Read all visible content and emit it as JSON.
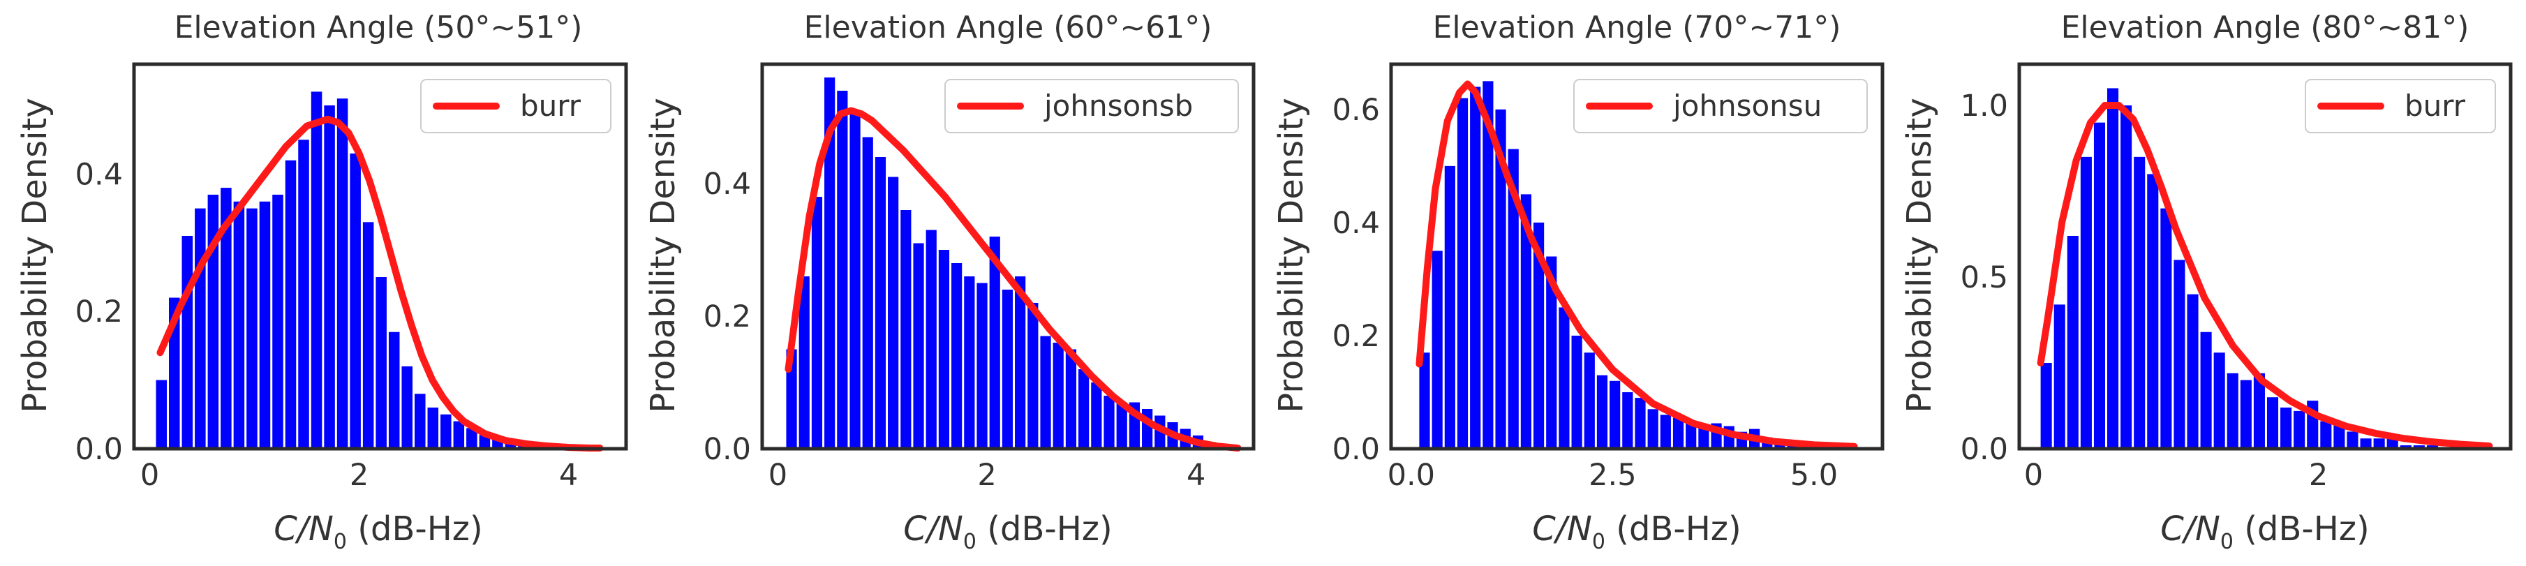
{
  "figure": {
    "ylabel": "Probability Density",
    "xlabel_symbol": "C/N",
    "xlabel_subscript": "0",
    "xlabel_unit": " (dB-Hz)"
  },
  "colors": {
    "bar": "#0000ff",
    "curve": "#ff1a1a",
    "frame": "#2b2b2b",
    "text": "#333333"
  },
  "chart_data": [
    {
      "type": "bar",
      "title": "Elevation Angle (50°~51°)",
      "xlabel": "C/N0 (dB-Hz)",
      "ylabel": "Probability Density",
      "xlim": [
        -0.15,
        4.55
      ],
      "ylim": [
        0,
        0.56
      ],
      "xticks": [
        0,
        2,
        4
      ],
      "yticks": [
        0,
        0.2,
        0.4
      ],
      "xtick_labels": [
        "0",
        "2",
        "4"
      ],
      "ytick_labels": [
        "0.0",
        "0.2",
        "0.4"
      ],
      "bin_start": 0.06,
      "bin_width": 0.1235,
      "values": [
        0.1,
        0.22,
        0.31,
        0.35,
        0.37,
        0.38,
        0.36,
        0.35,
        0.36,
        0.37,
        0.42,
        0.45,
        0.52,
        0.5,
        0.51,
        0.43,
        0.33,
        0.25,
        0.17,
        0.12,
        0.08,
        0.06,
        0.05,
        0.04,
        0.03,
        0.02,
        0.015,
        0.01,
        0.006,
        0.004,
        0.003,
        0.002,
        0.002,
        0.001,
        0.001
      ],
      "fit": {
        "name": "burr",
        "x": [
          0.1,
          0.3,
          0.5,
          0.7,
          0.9,
          1.1,
          1.3,
          1.5,
          1.7,
          1.8,
          1.9,
          2.0,
          2.1,
          2.2,
          2.3,
          2.4,
          2.5,
          2.6,
          2.7,
          2.8,
          2.9,
          3.0,
          3.2,
          3.4,
          3.6,
          3.8,
          4.0,
          4.2,
          4.3
        ],
        "y": [
          0.14,
          0.21,
          0.27,
          0.32,
          0.36,
          0.4,
          0.44,
          0.47,
          0.48,
          0.475,
          0.46,
          0.43,
          0.39,
          0.34,
          0.285,
          0.23,
          0.18,
          0.135,
          0.1,
          0.075,
          0.055,
          0.04,
          0.022,
          0.012,
          0.007,
          0.004,
          0.002,
          0.001,
          0.001
        ]
      },
      "legend": "burr"
    },
    {
      "type": "bar",
      "title": "Elevation Angle (60°~61°)",
      "xlabel": "C/N0 (dB-Hz)",
      "ylabel": "Probability Density",
      "xlim": [
        -0.15,
        4.55
      ],
      "ylim": [
        0,
        0.58
      ],
      "xticks": [
        0,
        2,
        4
      ],
      "yticks": [
        0,
        0.2,
        0.4
      ],
      "xtick_labels": [
        "0",
        "2",
        "4"
      ],
      "ytick_labels": [
        "0.0",
        "0.2",
        "0.4"
      ],
      "bin_start": 0.08,
      "bin_width": 0.1215,
      "values": [
        0.15,
        0.26,
        0.38,
        0.56,
        0.54,
        0.51,
        0.47,
        0.44,
        0.41,
        0.36,
        0.31,
        0.33,
        0.3,
        0.28,
        0.26,
        0.25,
        0.32,
        0.24,
        0.26,
        0.22,
        0.17,
        0.16,
        0.15,
        0.12,
        0.1,
        0.08,
        0.07,
        0.07,
        0.06,
        0.05,
        0.04,
        0.03,
        0.02,
        0.01,
        0.005,
        0.002
      ],
      "fit": {
        "name": "johnsonsb",
        "x": [
          0.1,
          0.2,
          0.3,
          0.4,
          0.5,
          0.6,
          0.7,
          0.8,
          0.9,
          1.0,
          1.2,
          1.4,
          1.6,
          1.8,
          2.0,
          2.2,
          2.4,
          2.6,
          2.8,
          3.0,
          3.2,
          3.4,
          3.6,
          3.8,
          4.0,
          4.2,
          4.4
        ],
        "y": [
          0.12,
          0.24,
          0.35,
          0.43,
          0.48,
          0.505,
          0.51,
          0.505,
          0.495,
          0.48,
          0.45,
          0.415,
          0.38,
          0.34,
          0.3,
          0.26,
          0.22,
          0.18,
          0.145,
          0.11,
          0.08,
          0.055,
          0.035,
          0.02,
          0.01,
          0.004,
          0.001
        ]
      },
      "legend": "johnsonsb"
    },
    {
      "type": "bar",
      "title": "Elevation Angle (70°~71°)",
      "xlabel": "C/N0 (dB-Hz)",
      "ylabel": "Probability Density",
      "xlim": [
        -0.25,
        5.85
      ],
      "ylim": [
        0,
        0.68
      ],
      "xticks": [
        0,
        2.5,
        5
      ],
      "yticks": [
        0,
        0.2,
        0.4,
        0.6
      ],
      "xtick_labels": [
        "0.0",
        "2.5",
        "5.0"
      ],
      "ytick_labels": [
        "0.0",
        "0.2",
        "0.4",
        "0.6"
      ],
      "bin_start": 0.1,
      "bin_width": 0.1575,
      "values": [
        0.17,
        0.35,
        0.5,
        0.62,
        0.64,
        0.65,
        0.6,
        0.53,
        0.45,
        0.4,
        0.34,
        0.25,
        0.2,
        0.17,
        0.13,
        0.12,
        0.1,
        0.09,
        0.07,
        0.06,
        0.055,
        0.05,
        0.04,
        0.045,
        0.04,
        0.03,
        0.035,
        0.02,
        0.01,
        0.01,
        0.005,
        0.005,
        0.003,
        0.002,
        0.002
      ],
      "fit": {
        "name": "johnsonsu",
        "x": [
          0.1,
          0.2,
          0.3,
          0.45,
          0.6,
          0.7,
          0.8,
          1.0,
          1.2,
          1.5,
          1.8,
          2.1,
          2.5,
          3.0,
          3.5,
          4.0,
          4.5,
          5.0,
          5.5
        ],
        "y": [
          0.15,
          0.32,
          0.46,
          0.58,
          0.63,
          0.645,
          0.63,
          0.56,
          0.48,
          0.37,
          0.28,
          0.21,
          0.14,
          0.08,
          0.045,
          0.025,
          0.013,
          0.007,
          0.004
        ]
      },
      "legend": "johnsonsu"
    },
    {
      "type": "bar",
      "title": "Elevation Angle (80°~81°)",
      "xlabel": "C/N0 (dB-Hz)",
      "ylabel": "Probability Density",
      "xlim": [
        -0.1,
        3.35
      ],
      "ylim": [
        0,
        1.12
      ],
      "xticks": [
        0,
        2
      ],
      "yticks": [
        0,
        0.5,
        1.0
      ],
      "xtick_labels": [
        "0",
        "2"
      ],
      "ytick_labels": [
        "0.0",
        "0.5",
        "1.0"
      ],
      "bin_start": 0.05,
      "bin_width": 0.0935,
      "values": [
        0.25,
        0.42,
        0.62,
        0.85,
        0.95,
        1.05,
        1.0,
        0.85,
        0.8,
        0.7,
        0.55,
        0.45,
        0.34,
        0.28,
        0.22,
        0.2,
        0.22,
        0.15,
        0.12,
        0.11,
        0.14,
        0.08,
        0.07,
        0.05,
        0.03,
        0.03,
        0.03,
        0.01,
        0.01,
        0.01,
        0.005,
        0.005,
        0.01
      ],
      "fit": {
        "name": "burr",
        "x": [
          0.05,
          0.1,
          0.15,
          0.2,
          0.3,
          0.4,
          0.5,
          0.6,
          0.7,
          0.8,
          0.9,
          1.0,
          1.2,
          1.4,
          1.6,
          1.8,
          2.0,
          2.2,
          2.4,
          2.6,
          2.8,
          3.0,
          3.2
        ],
        "y": [
          0.25,
          0.38,
          0.52,
          0.66,
          0.84,
          0.95,
          1.0,
          1.0,
          0.96,
          0.87,
          0.76,
          0.64,
          0.44,
          0.3,
          0.2,
          0.14,
          0.095,
          0.065,
          0.045,
          0.03,
          0.02,
          0.013,
          0.008
        ]
      },
      "legend": "burr"
    }
  ]
}
